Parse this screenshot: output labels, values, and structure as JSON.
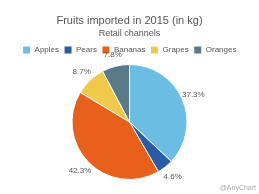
{
  "chart_data": {
    "type": "pie",
    "title": "Fruits imported in 2015 (in kg)",
    "subtitle": "Retail channels",
    "categories": [
      "Apples",
      "Pears",
      "Bananas",
      "Grapes",
      "Oranges"
    ],
    "values": [
      37.3,
      4.6,
      42.3,
      8.7,
      7.8
    ],
    "value_labels": [
      "37.3%",
      "4.6%",
      "42.3%",
      "8.7%",
      "7.8%"
    ],
    "colors": [
      "#6BBDE3",
      "#2B5BA8",
      "#E8601C",
      "#F0C84A",
      "#5A7A8A"
    ],
    "data_labels": true,
    "legend": "top",
    "annotations": [
      "@AnyChart"
    ]
  }
}
